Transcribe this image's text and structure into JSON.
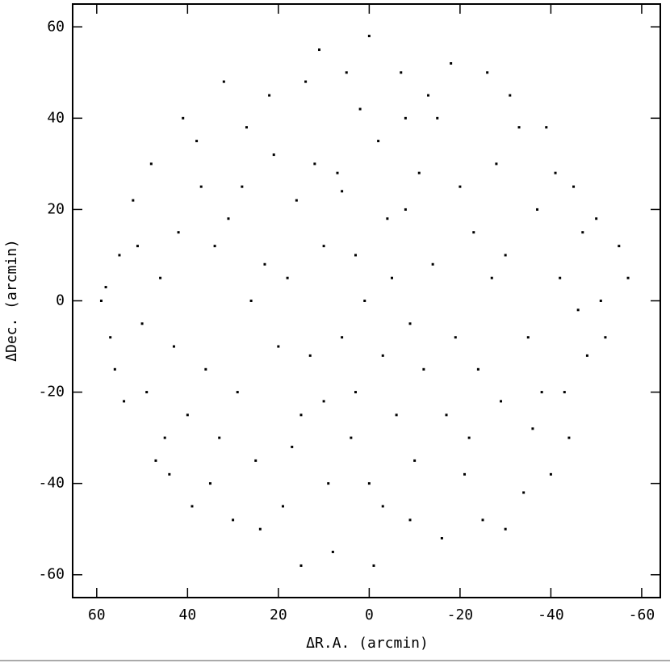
{
  "chart_data": {
    "type": "scatter",
    "x_label": "ΔR.A. (arcmin)",
    "y_label": "ΔDec. (arcmin)",
    "color": "#000000",
    "xlim": [
      65.3,
      -64.1
    ],
    "ylim": [
      -65,
      65
    ],
    "xticks": [
      60,
      40,
      20,
      0,
      -20,
      -40,
      -60
    ],
    "yticks": [
      -60,
      -40,
      -20,
      0,
      20,
      40,
      60
    ],
    "x": [
      5,
      -3,
      12,
      -8,
      20,
      -15,
      28,
      -22,
      35,
      -30,
      42,
      -38,
      50,
      -45,
      55,
      -52,
      0,
      8,
      -5,
      15,
      -12,
      22,
      -18,
      30,
      -25,
      38,
      -33,
      45,
      -40,
      52,
      3,
      -2,
      10,
      -10,
      18,
      -16,
      25,
      -20,
      32,
      -28,
      40,
      -35,
      48,
      -42,
      56,
      -50,
      6,
      -6,
      14,
      -14,
      24,
      -24,
      34,
      -34,
      44,
      -44,
      2,
      -1,
      9,
      -7,
      16,
      -11,
      26,
      -21,
      36,
      -31,
      46,
      -41,
      54,
      -48,
      4,
      11,
      -4,
      19,
      -9,
      27,
      -17,
      33,
      -27,
      41,
      -37,
      47,
      -46,
      58,
      -55,
      1,
      13,
      -13,
      21,
      -19,
      29,
      -26,
      37,
      -36,
      43,
      -43,
      51,
      -51,
      7,
      -9,
      17,
      -23,
      31,
      -29,
      39,
      -39,
      49,
      -47,
      57,
      -57,
      59,
      -8,
      3,
      -3,
      10,
      23,
      15,
      -30,
      0,
      6
    ],
    "y": [
      50,
      -45,
      30,
      20,
      -10,
      40,
      25,
      -30,
      -40,
      10,
      15,
      -20,
      -5,
      25,
      10,
      -8,
      58,
      -55,
      5,
      -25,
      -15,
      45,
      52,
      -48,
      -48,
      35,
      38,
      -30,
      -38,
      22,
      -20,
      35,
      12,
      -35,
      5,
      -52,
      -35,
      25,
      48,
      30,
      -25,
      -8,
      30,
      5,
      -15,
      18,
      -8,
      -25,
      48,
      8,
      -50,
      -15,
      12,
      -42,
      -38,
      -30,
      42,
      -58,
      -40,
      50,
      22,
      28,
      0,
      -38,
      -15,
      45,
      5,
      28,
      -22,
      -12,
      -30,
      55,
      18,
      -45,
      -5,
      38,
      -25,
      -30,
      5,
      40,
      20,
      -35,
      -2,
      3,
      12,
      0,
      -12,
      45,
      32,
      -8,
      -20,
      50,
      25,
      -28,
      -10,
      -20,
      12,
      0,
      28,
      -48,
      -32,
      15,
      18,
      -22,
      -45,
      38,
      -20,
      15,
      -8,
      5,
      0,
      40,
      10,
      -12,
      -22,
      8,
      -58,
      -50,
      -40,
      24
    ]
  }
}
